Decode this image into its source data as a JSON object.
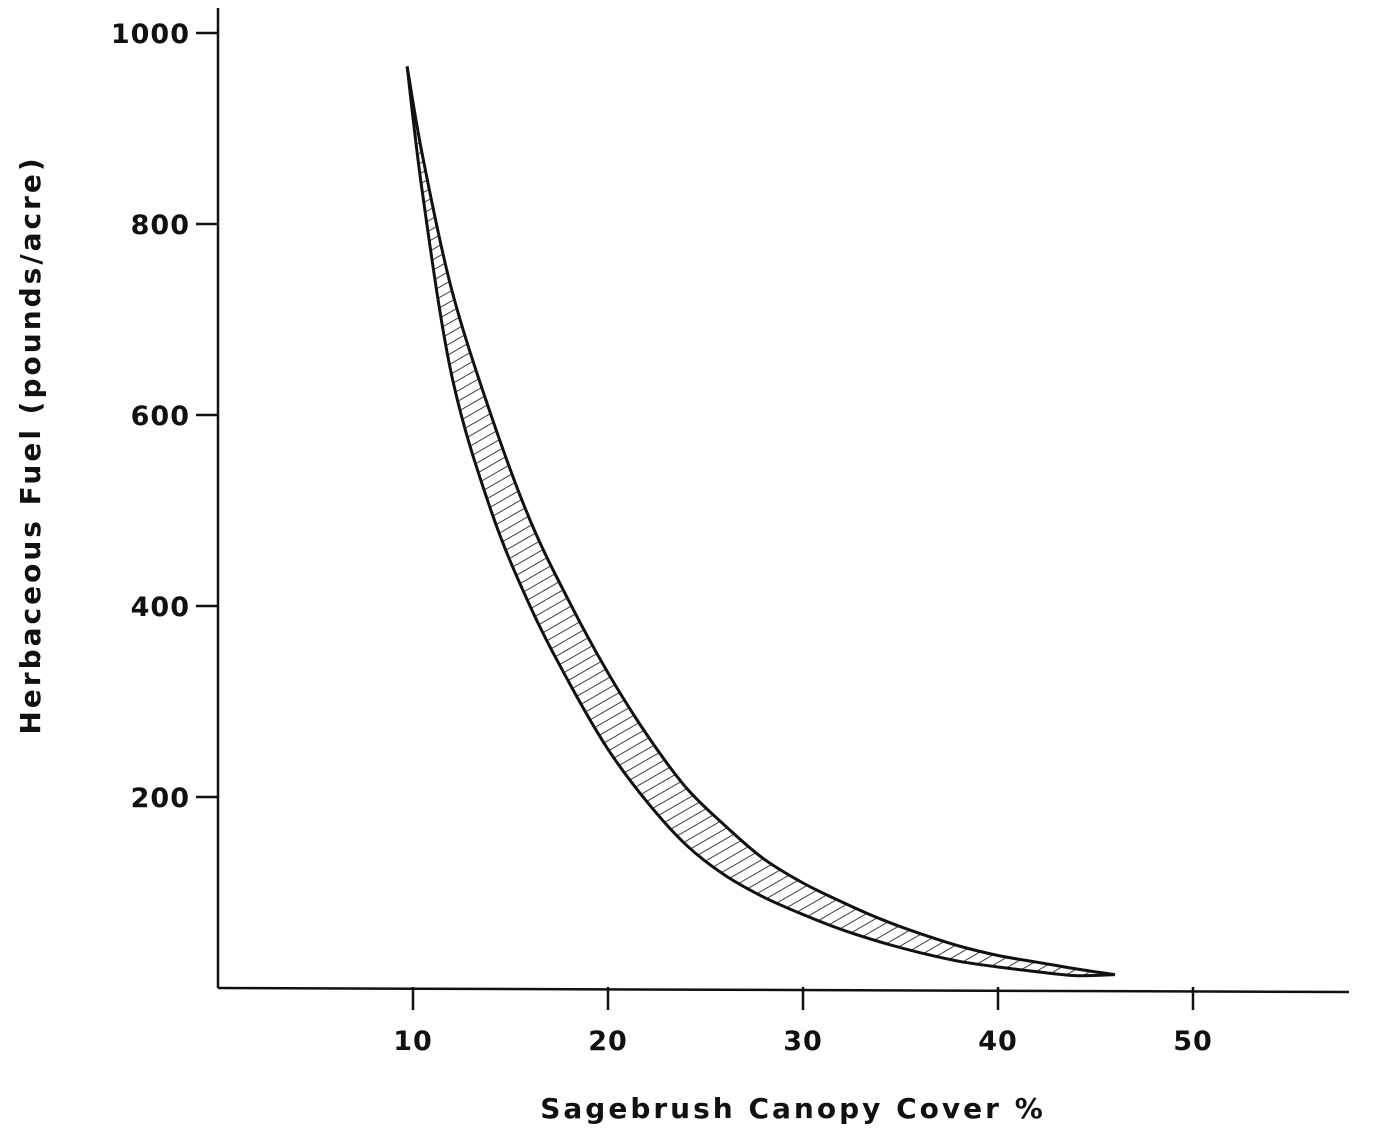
{
  "chart_data": {
    "type": "area",
    "title": "",
    "xlabel": "Sagebrush Canopy Cover %",
    "ylabel": "Herbaceous Fuel (pounds/acre)",
    "xlim": [
      0,
      58
    ],
    "ylim": [
      0,
      1000
    ],
    "x_ticks": [
      "10",
      "20",
      "30",
      "40",
      "50"
    ],
    "y_ticks": [
      "200",
      "400",
      "600",
      "800",
      "1000"
    ],
    "grid": false,
    "legend": "none",
    "fill_pattern": "hatched",
    "colors": {
      "ink": "#111111",
      "background": "#ffffff"
    },
    "series": [
      {
        "role": "upper-bound",
        "x": [
          9.7,
          10.5,
          12,
          14,
          16,
          18,
          20,
          22,
          24,
          26,
          28,
          30,
          32,
          34,
          36,
          38,
          40,
          42,
          44,
          46
        ],
        "y": [
          965,
          870,
          730,
          600,
          490,
          405,
          330,
          265,
          210,
          170,
          135,
          110,
          90,
          72,
          57,
          44,
          34,
          27,
          20,
          14
        ]
      },
      {
        "role": "lower-bound",
        "x": [
          9.7,
          10.5,
          12,
          14,
          16,
          18,
          20,
          22,
          24,
          26,
          28,
          30,
          32,
          34,
          36,
          38,
          40,
          42,
          44,
          46
        ],
        "y": [
          965,
          830,
          640,
          500,
          400,
          320,
          250,
          195,
          150,
          118,
          95,
          77,
          61,
          48,
          37,
          28,
          22,
          17,
          13,
          14
        ]
      }
    ]
  }
}
